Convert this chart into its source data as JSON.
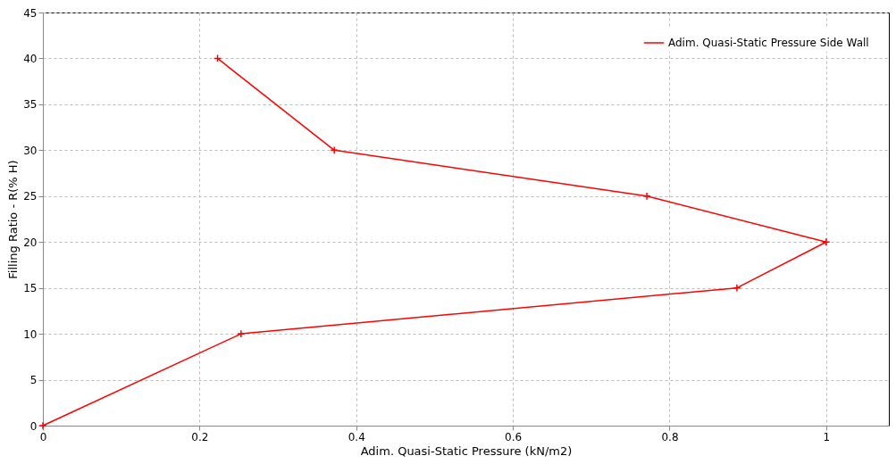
{
  "chart_data": {
    "type": "line",
    "xlabel": "Adim. Quasi-Static Pressure (kN/m2)",
    "ylabel": "Filling Ratio - R(% H)",
    "x": [
      0,
      0.253,
      0.886,
      1.0,
      0.771,
      0.372,
      0.223
    ],
    "series": [
      {
        "name": "Adim. Quasi-Static Pressure Side Wall",
        "color": "#ff0000",
        "values": [
          0,
          10,
          15,
          20,
          25,
          30,
          40
        ]
      }
    ],
    "xlim": [
      0,
      1.08
    ],
    "xticks": [
      0,
      0.2,
      0.4,
      0.6,
      0.8,
      1
    ],
    "ylim": [
      0,
      45
    ],
    "yticks": [
      0,
      5,
      10,
      15,
      20,
      25,
      30,
      35,
      40,
      45
    ],
    "grid": true,
    "legend": "top right",
    "marker": "cross",
    "line_style": "solid"
  }
}
